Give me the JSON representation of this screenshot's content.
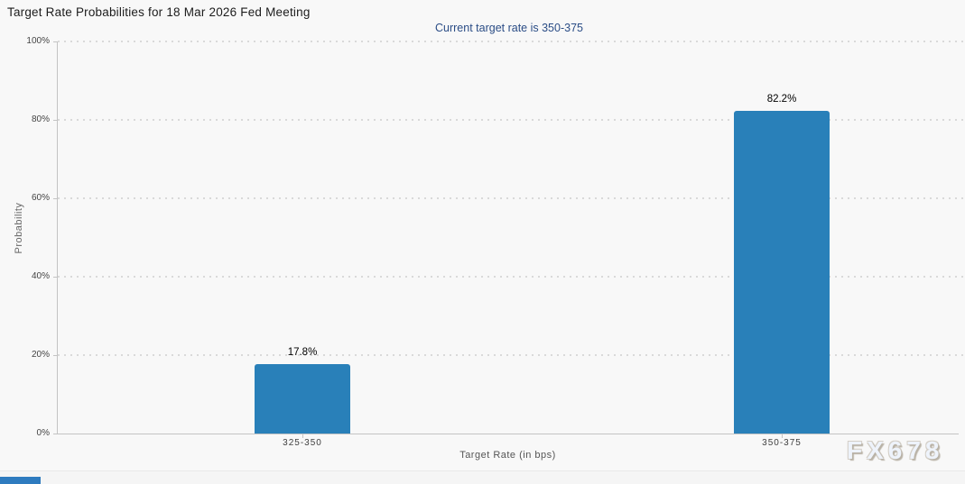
{
  "page": {
    "watermark": "FX678"
  },
  "chart_data": {
    "type": "bar",
    "title": "Target Rate Probabilities for 18 Mar 2026 Fed Meeting",
    "subtitle": "Current target rate is 350-375",
    "categories": [
      "325-350",
      "350-375"
    ],
    "values": [
      17.8,
      82.2
    ],
    "value_labels": [
      "17.8%",
      "82.2%"
    ],
    "xlabel": "Target Rate (in bps)",
    "ylabel": "Probability",
    "ylim": [
      0,
      100
    ],
    "ytick_labels": [
      "0%",
      "20%",
      "40%",
      "60%",
      "80%",
      "100%"
    ],
    "grid": "horizontal-dotted",
    "legend": "none"
  },
  "colors": {
    "background": "#f8f8f8",
    "bar": "#2980b9",
    "subtitle_text": "#2b4d86",
    "axis": "#c4c4c4",
    "gridline": "#d9d9d9",
    "bottom_strip": "#2e7bbf"
  }
}
